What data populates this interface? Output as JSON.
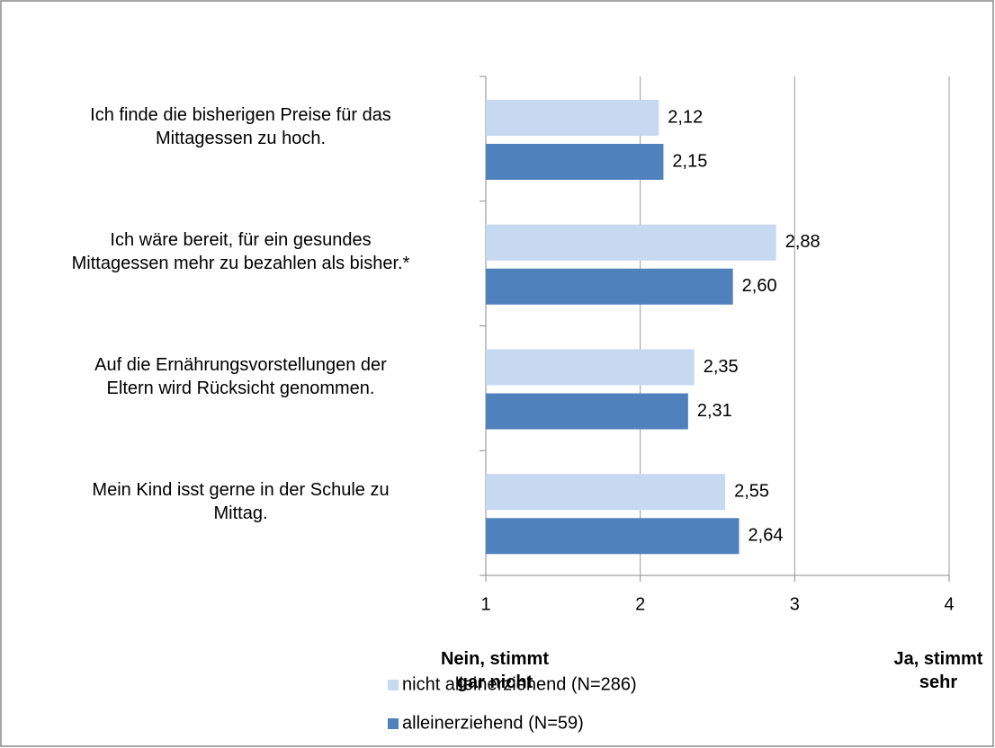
{
  "chart_data": {
    "type": "bar",
    "orientation": "horizontal",
    "categories": [
      "Ich finde die bisherigen Preise für das\nMittagessen zu hoch.",
      "Ich wäre bereit, für ein gesundes\nMittagessen mehr zu bezahlen als bisher.*",
      "Auf die Ernährungsvorstellungen der\nEltern wird Rücksicht genommen.",
      "Mein Kind isst gerne in der Schule zu\nMittag."
    ],
    "series": [
      {
        "name": "nicht alleinerziehend (N=286)",
        "color": "#c6d9f1",
        "values": [
          2.12,
          2.88,
          2.35,
          2.55
        ],
        "value_labels": [
          "2,12",
          "2,88",
          "2,35",
          "2,55"
        ]
      },
      {
        "name": "alleinerziehend (N=59)",
        "color": "#4f81bd",
        "values": [
          2.15,
          2.6,
          2.31,
          2.64
        ],
        "value_labels": [
          "2,15",
          "2,60",
          "2,31",
          "2,64"
        ]
      }
    ],
    "xlim": [
      1,
      4
    ],
    "xticks": [
      1,
      2,
      3,
      4
    ],
    "grid": true,
    "legend": "bottom-left",
    "annotations": [
      "Nein, stimmt\ngar nicht",
      "Ja, stimmt\nsehr"
    ]
  }
}
